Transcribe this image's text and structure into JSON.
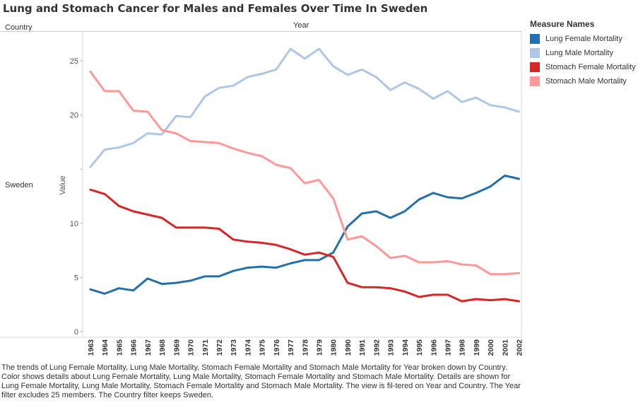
{
  "title": "Lung and Stomach Cancer for Males and Females Over Time In Sweden",
  "headers": {
    "country": "Country",
    "year": "Year"
  },
  "row_value": "Sweden",
  "legend": {
    "title": "Measure Names",
    "items": [
      {
        "label": "Lung Female Mortality",
        "color": "#2470ac"
      },
      {
        "label": "Lung Male Mortality",
        "color": "#aec7e8"
      },
      {
        "label": "Stomach Female Mortality",
        "color": "#d62728"
      },
      {
        "label": "Stomach Male Mortality",
        "color": "#ff9896"
      }
    ]
  },
  "caption": "The trends of Lung Female Mortality, Lung Male Mortality, Stomach Female Mortality and Stomach Male Mortality for Year broken down by Country.  Color shows details about Lung Female Mortality, Lung Male Mortality, Stomach Female Mortality and Stomach Male Mortality. Details are shown for Lung Female Mortality, Lung Male Mortality, Stomach Female Mortality and Stomach Male Mortality. The view is fil-tered on Year and Country. The Year filter excludes 25 members. The Country filter keeps Sweden.",
  "chart_data": {
    "type": "line",
    "title": "Lung and Stomach Cancer for Males and Females Over Time In Sweden",
    "xlabel": "Year",
    "ylabel": "Value",
    "x": [
      "1963",
      "1964",
      "1965",
      "1966",
      "1967",
      "1968",
      "1969",
      "1970",
      "1971",
      "1972",
      "1973",
      "1974",
      "1975",
      "1976",
      "1977",
      "1978",
      "1979",
      "1980",
      "1990",
      "1991",
      "1992",
      "1993",
      "1994",
      "1995",
      "1996",
      "1997",
      "1998",
      "1999",
      "2000",
      "2001",
      "2002"
    ],
    "yticks": [
      0,
      5,
      10,
      15,
      20,
      25
    ],
    "ytick_labels": [
      "0",
      "5",
      "10",
      "",
      "20",
      "25"
    ],
    "ylim": [
      0,
      27
    ],
    "grid": false,
    "legend_position": "right",
    "series": [
      {
        "name": "Lung Female Mortality",
        "color": "#2470ac",
        "values": [
          3.9,
          3.5,
          4.0,
          3.8,
          4.9,
          4.4,
          4.5,
          4.7,
          5.1,
          5.1,
          5.6,
          5.9,
          6.0,
          5.9,
          6.3,
          6.6,
          6.6,
          7.3,
          9.7,
          10.9,
          11.1,
          10.5,
          11.1,
          12.2,
          12.8,
          12.4,
          12.3,
          12.8,
          13.4,
          14.4,
          14.1
        ]
      },
      {
        "name": "Lung Male Mortality",
        "color": "#aec7e8",
        "values": [
          15.2,
          16.8,
          17.0,
          17.4,
          18.3,
          18.2,
          19.9,
          19.8,
          21.7,
          22.5,
          22.7,
          23.5,
          23.8,
          24.2,
          26.1,
          25.2,
          26.1,
          24.5,
          23.7,
          24.2,
          23.5,
          22.3,
          23.0,
          22.4,
          21.5,
          22.2,
          21.2,
          21.6,
          20.9,
          20.7,
          20.3
        ]
      },
      {
        "name": "Stomach Female Mortality",
        "color": "#d62728",
        "values": [
          13.1,
          12.7,
          11.6,
          11.1,
          10.8,
          10.5,
          9.6,
          9.6,
          9.6,
          9.5,
          8.5,
          8.3,
          8.2,
          8.0,
          7.6,
          7.1,
          7.3,
          6.9,
          4.5,
          4.1,
          4.1,
          4.0,
          3.7,
          3.2,
          3.4,
          3.4,
          2.8,
          3.0,
          2.9,
          3.0,
          2.8
        ]
      },
      {
        "name": "Stomach Male Mortality",
        "color": "#ff9896",
        "values": [
          24.0,
          22.2,
          22.2,
          20.4,
          20.3,
          18.6,
          18.3,
          17.6,
          17.5,
          17.4,
          16.9,
          16.5,
          16.2,
          15.4,
          15.1,
          13.7,
          14.0,
          12.3,
          8.5,
          8.8,
          7.9,
          6.8,
          7.0,
          6.4,
          6.4,
          6.5,
          6.2,
          6.1,
          5.3,
          5.3,
          5.4
        ]
      }
    ]
  }
}
